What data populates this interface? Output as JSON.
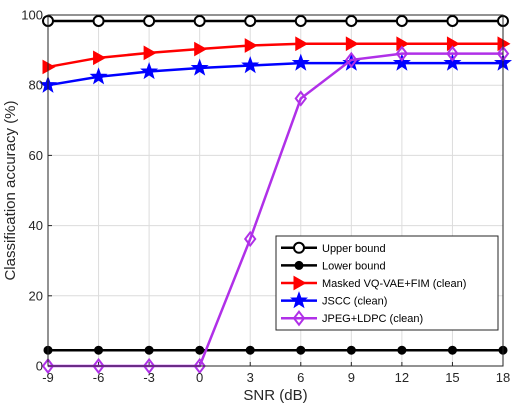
{
  "chart_data": {
    "type": "line",
    "xlabel": "SNR (dB)",
    "ylabel": "Classification accuracy (%)",
    "x": [
      -9,
      -6,
      -3,
      0,
      3,
      6,
      9,
      12,
      15,
      18
    ],
    "x_ticks": [
      "-9",
      "-6",
      "-3",
      "0",
      "3",
      "6",
      "9",
      "12",
      "15",
      "18"
    ],
    "y_ticks": [
      "0",
      "20",
      "40",
      "60",
      "80",
      "100"
    ],
    "xlim": [
      -9,
      18
    ],
    "ylim": [
      0,
      100
    ],
    "grid": true,
    "legend_position": "bottom-right",
    "series": [
      {
        "name": "Upper bound",
        "color": "#000000",
        "marker": "circle-open",
        "values": [
          98.3,
          98.3,
          98.3,
          98.3,
          98.3,
          98.3,
          98.3,
          98.3,
          98.3,
          98.3
        ]
      },
      {
        "name": "Lower bound",
        "color": "#000000",
        "marker": "circle-filled",
        "values": [
          4.5,
          4.5,
          4.5,
          4.5,
          4.5,
          4.5,
          4.5,
          4.5,
          4.5,
          4.5
        ]
      },
      {
        "name": "Masked VQ-VAE+FIM (clean)",
        "color": "#ff0000",
        "marker": "triangle-right",
        "values": [
          85.2,
          87.8,
          89.2,
          90.3,
          91.3,
          91.8,
          91.8,
          91.8,
          91.8,
          91.8
        ]
      },
      {
        "name": "JSCC (clean)",
        "color": "#0000ff",
        "marker": "star",
        "values": [
          80.0,
          82.4,
          83.9,
          84.9,
          85.6,
          86.3,
          86.3,
          86.3,
          86.3,
          86.3
        ]
      },
      {
        "name": "JPEG+LDPC (clean)",
        "color": "#b030e8",
        "marker": "diamond",
        "values": [
          0,
          0,
          0,
          0,
          36.2,
          76.2,
          87.2,
          89.0,
          89.0,
          89.0
        ]
      }
    ]
  }
}
